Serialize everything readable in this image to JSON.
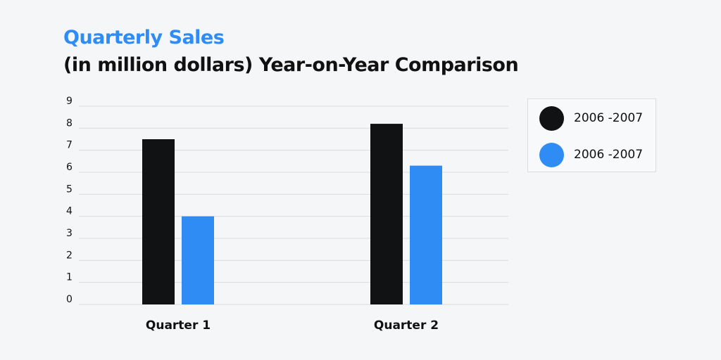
{
  "header": {
    "title": "Quarterly Sales",
    "subtitle": "(in million dollars) Year-on-Year Comparison"
  },
  "colors": {
    "title": "#2f8cf4",
    "series_1": "#111214",
    "series_2": "#2f8cf4",
    "grid": "#d9dce0",
    "text": "#111111"
  },
  "chart_data": {
    "type": "bar",
    "categories": [
      "Quarter 1",
      "Quarter 2"
    ],
    "series": [
      {
        "name": "2006 -2007",
        "values": [
          7.5,
          8.2
        ],
        "color": "#111214"
      },
      {
        "name": "2006 -2007",
        "values": [
          4.0,
          6.3
        ],
        "color": "#2f8cf4"
      }
    ],
    "title": "Quarterly Sales",
    "subtitle": "(in million dollars) Year-on-Year Comparison",
    "xlabel": "",
    "ylabel": "",
    "ylim": [
      0,
      9
    ],
    "yticks": [
      "0",
      "1",
      "2",
      "3",
      "4",
      "5",
      "6",
      "7",
      "8",
      "9"
    ],
    "grid": true,
    "legend_position": "right"
  }
}
